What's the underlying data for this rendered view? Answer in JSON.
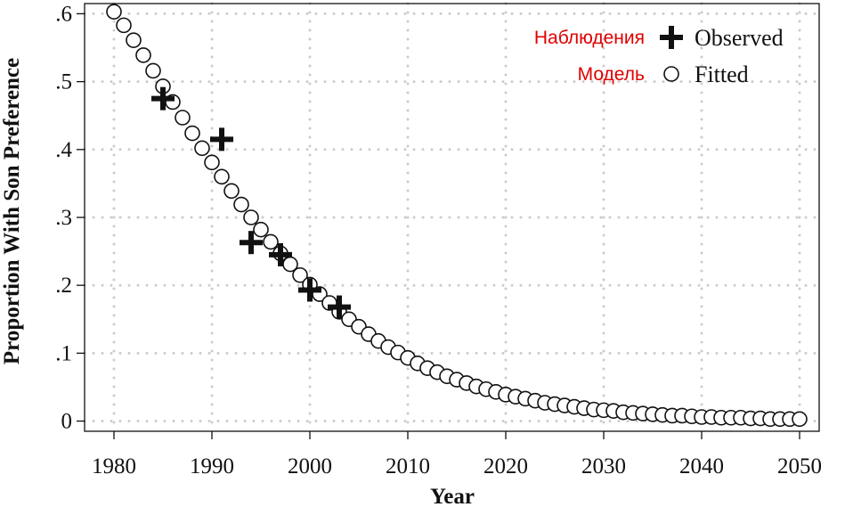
{
  "chart_data": {
    "type": "scatter",
    "xlabel": "Year",
    "ylabel": "Proportion With Son Preference",
    "xlim": [
      1977,
      2052
    ],
    "ylim": [
      -0.015,
      0.615
    ],
    "x_ticks": [
      1980,
      1990,
      2000,
      2010,
      2020,
      2030,
      2040,
      2050
    ],
    "x_tick_labels": [
      "1980",
      "1990",
      "2000",
      "2010",
      "2020",
      "2030",
      "2040",
      "2050"
    ],
    "y_ticks": [
      0,
      0.1,
      0.2,
      0.3,
      0.4,
      0.5,
      0.6
    ],
    "y_tick_labels": [
      "0",
      ".1",
      ".2",
      ".3",
      ".4",
      ".5",
      ".6"
    ],
    "grid": true,
    "legend_position": "top-right",
    "legend": [
      {
        "symbol": "plus",
        "label": "Observed",
        "annotation": "Наблюдения"
      },
      {
        "symbol": "circle",
        "label": "Fitted",
        "annotation": "Модель"
      }
    ],
    "series": [
      {
        "name": "Observed",
        "marker": "plus",
        "x": [
          1985,
          1991,
          1994,
          1997,
          2000,
          2003
        ],
        "y": [
          0.475,
          0.415,
          0.263,
          0.245,
          0.193,
          0.168
        ]
      },
      {
        "name": "Fitted",
        "marker": "circle",
        "x": [
          1980,
          1981,
          1982,
          1983,
          1984,
          1985,
          1986,
          1987,
          1988,
          1989,
          1990,
          1991,
          1992,
          1993,
          1994,
          1995,
          1996,
          1997,
          1998,
          1999,
          2000,
          2001,
          2002,
          2003,
          2004,
          2005,
          2006,
          2007,
          2008,
          2009,
          2010,
          2011,
          2012,
          2013,
          2014,
          2015,
          2016,
          2017,
          2018,
          2019,
          2020,
          2021,
          2022,
          2023,
          2024,
          2025,
          2026,
          2027,
          2028,
          2029,
          2030,
          2031,
          2032,
          2033,
          2034,
          2035,
          2036,
          2037,
          2038,
          2039,
          2040,
          2041,
          2042,
          2043,
          2044,
          2045,
          2046,
          2047,
          2048,
          2049,
          2050
        ],
        "y": [
          0.603,
          0.583,
          0.561,
          0.539,
          0.516,
          0.493,
          0.47,
          0.447,
          0.424,
          0.402,
          0.381,
          0.36,
          0.339,
          0.319,
          0.3,
          0.282,
          0.264,
          0.247,
          0.231,
          0.215,
          0.201,
          0.187,
          0.174,
          0.161,
          0.15,
          0.139,
          0.128,
          0.118,
          0.109,
          0.101,
          0.093,
          0.085,
          0.078,
          0.072,
          0.066,
          0.061,
          0.056,
          0.051,
          0.047,
          0.043,
          0.039,
          0.036,
          0.033,
          0.03,
          0.027,
          0.025,
          0.023,
          0.021,
          0.019,
          0.017,
          0.016,
          0.015,
          0.013,
          0.012,
          0.011,
          0.01,
          0.009,
          0.008,
          0.008,
          0.007,
          0.006,
          0.006,
          0.005,
          0.005,
          0.005,
          0.004,
          0.004,
          0.003,
          0.003,
          0.003,
          0.003
        ]
      }
    ]
  }
}
